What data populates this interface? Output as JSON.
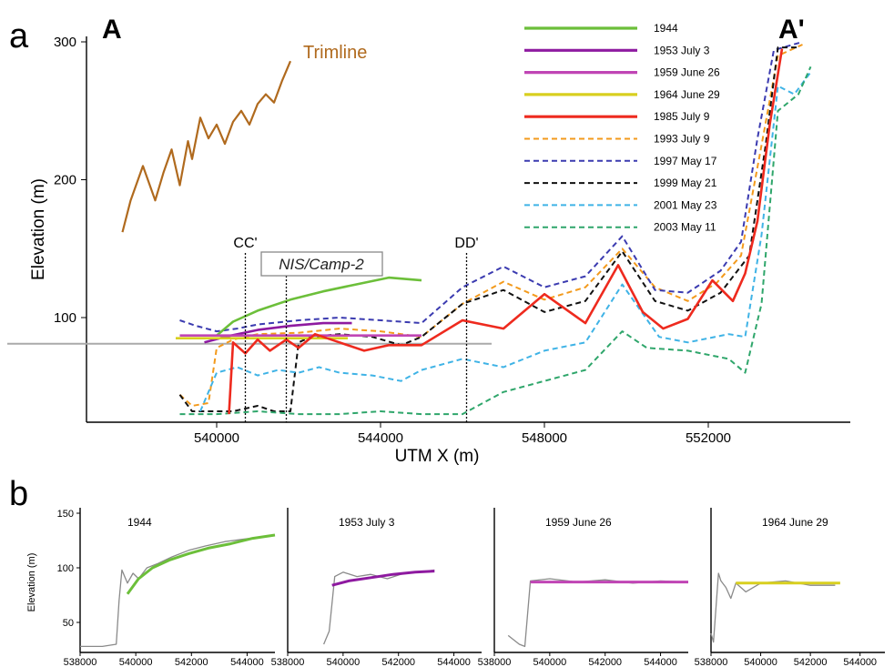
{
  "figure": {
    "panel_a_label": "a",
    "panel_b_label": "b",
    "endpoint_left": "A",
    "endpoint_right": "A'",
    "trimline_label": "Trimline",
    "nis_label": "NIS/Camp-2",
    "section_cc_label": "CC'",
    "section_dd_label": "DD'",
    "colors": {
      "1944": "#6cbf3a",
      "1953 July 3": "#8e1aa0",
      "1959 June 26": "#c045b5",
      "1964 June 29": "#d8cf1f",
      "1985 July 9": "#ee2a1e",
      "1993 July 9": "#f39a1c",
      "1997 May 17": "#3b3bb0",
      "1999 May 21": "#111111",
      "2001 May 23": "#3fb3e6",
      "2003 May 11": "#2fa66b",
      "trimline": "#b06a1e",
      "reference": "#aaaaaa",
      "raw": "#8a8a8a"
    }
  },
  "chart_data": [
    {
      "type": "line",
      "panel": "a",
      "xlabel": "UTM X (m)",
      "ylabel": "Elevation (m)",
      "xlim": [
        537000,
        555000
      ],
      "ylim": [
        25,
        300
      ],
      "xticks": [
        540000,
        544000,
        548000,
        552000
      ],
      "yticks": [
        100,
        200,
        300
      ],
      "legend_position": "top-right",
      "section_markers": [
        {
          "label": "CC'",
          "x": 540700
        },
        {
          "label": "DD'",
          "x": 546100
        }
      ],
      "nis_marker_x": 541700,
      "reference_line_y": 81,
      "trimline": {
        "x": [
          537700,
          537900,
          538200,
          538500,
          538700,
          538900,
          539100,
          539300,
          539400,
          539500,
          539600,
          539800,
          540000,
          540200,
          540400,
          540600,
          540800,
          541000,
          541200,
          541400,
          541600,
          541800
        ],
        "y": [
          162,
          185,
          210,
          185,
          205,
          222,
          196,
          228,
          215,
          230,
          245,
          230,
          240,
          226,
          242,
          250,
          240,
          255,
          262,
          256,
          272,
          286
        ]
      },
      "series": [
        {
          "name": "1944",
          "style": "solid",
          "x": [
            540000,
            540400,
            541000,
            541800,
            542600,
            543400,
            544200,
            545000
          ],
          "y": [
            87,
            97,
            105,
            113,
            119,
            124,
            129,
            127
          ]
        },
        {
          "name": "1953 July 3",
          "style": "solid",
          "x": [
            539700,
            540200,
            541000,
            541800,
            542600,
            543300
          ],
          "y": [
            82,
            86,
            91,
            94,
            96,
            96
          ]
        },
        {
          "name": "1959 June 26",
          "style": "solid",
          "x": [
            539100,
            541000,
            543000,
            545000
          ],
          "y": [
            87,
            87,
            87,
            87
          ]
        },
        {
          "name": "1964 June 29",
          "style": "solid",
          "x": [
            539000,
            541000,
            543200
          ],
          "y": [
            85,
            85,
            85
          ]
        },
        {
          "name": "1985 July 9",
          "style": "solid",
          "x": [
            540300,
            540400,
            540700,
            541000,
            541300,
            541700,
            542000,
            542400,
            543000,
            543600,
            544200,
            545000,
            546000,
            547000,
            548000,
            549000,
            549800,
            550400,
            550900,
            551500,
            552100,
            552600,
            552900,
            553200,
            553500,
            553800
          ],
          "y": [
            30,
            82,
            74,
            84,
            76,
            84,
            78,
            88,
            82,
            76,
            80,
            80,
            98,
            92,
            117,
            96,
            138,
            104,
            92,
            99,
            127,
            112,
            132,
            170,
            240,
            295
          ]
        },
        {
          "name": "1993 July 9",
          "style": "dashed",
          "x": [
            539100,
            539400,
            539800,
            540000,
            540400,
            541000,
            542000,
            543000,
            544000,
            545000,
            546000,
            547000,
            548000,
            549000,
            549900,
            550700,
            551500,
            552200,
            552800,
            553300,
            553700,
            554300
          ],
          "y": [
            44,
            36,
            38,
            78,
            84,
            88,
            89,
            92,
            90,
            86,
            110,
            126,
            113,
            122,
            150,
            122,
            112,
            125,
            145,
            225,
            290,
            298
          ]
        },
        {
          "name": "1997 May 17",
          "style": "dashed",
          "x": [
            539100,
            539500,
            540000,
            540500,
            541000,
            542000,
            543000,
            544000,
            545000,
            546000,
            547000,
            548000,
            549000,
            549900,
            550700,
            551500,
            552300,
            552800,
            553200,
            553600,
            554300
          ],
          "y": [
            98,
            94,
            90,
            92,
            95,
            98,
            100,
            98,
            96,
            122,
            137,
            122,
            130,
            159,
            120,
            118,
            134,
            155,
            230,
            294,
            300
          ]
        },
        {
          "name": "1999 May 21",
          "style": "dashed",
          "x": [
            539100,
            539400,
            540000,
            540400,
            541000,
            541400,
            541800,
            542000,
            542300,
            543000,
            543800,
            544500,
            545000,
            546000,
            547000,
            548000,
            549000,
            549900,
            550700,
            551500,
            552300,
            553000,
            553400,
            553700,
            554200
          ],
          "y": [
            44,
            32,
            32,
            32,
            36,
            32,
            32,
            82,
            86,
            88,
            86,
            80,
            86,
            110,
            120,
            104,
            112,
            148,
            112,
            105,
            118,
            145,
            225,
            296,
            296
          ]
        },
        {
          "name": "2001 May 23",
          "style": "dashed",
          "x": [
            539600,
            540000,
            540500,
            541000,
            541500,
            542000,
            542500,
            543000,
            543800,
            544500,
            545000,
            546000,
            547000,
            548000,
            549000,
            549900,
            550800,
            551500,
            552500,
            552900,
            553300,
            553700,
            554100,
            554500
          ],
          "y": [
            32,
            60,
            64,
            58,
            62,
            60,
            64,
            60,
            58,
            54,
            62,
            70,
            64,
            76,
            82,
            124,
            86,
            82,
            88,
            86,
            160,
            268,
            262,
            278
          ]
        },
        {
          "name": "2003 May 11",
          "style": "dashed",
          "x": [
            539100,
            540000,
            541000,
            542000,
            543000,
            544000,
            545000,
            546000,
            546500,
            547000,
            548000,
            549000,
            549900,
            550500,
            551500,
            552500,
            552900,
            553300,
            553700,
            554200,
            554500
          ],
          "y": [
            30,
            30,
            32,
            30,
            30,
            32,
            30,
            30,
            38,
            46,
            54,
            62,
            90,
            78,
            76,
            70,
            60,
            110,
            250,
            262,
            282
          ]
        }
      ]
    },
    {
      "type": "line",
      "panel": "b",
      "title": "1944",
      "ylabel": "Elevation (m)",
      "xlim": [
        538000,
        545000
      ],
      "ylim": [
        25,
        150
      ],
      "xticks": [
        538000,
        540000,
        542000,
        544000
      ],
      "yticks": [
        50,
        100,
        150
      ],
      "raw_profile": {
        "x": [
          538000,
          538800,
          539300,
          539400,
          539500,
          539700,
          539900,
          540100,
          540400,
          540800,
          541300,
          541900,
          542500,
          543200,
          543800,
          544400,
          545000
        ],
        "y": [
          28,
          28,
          30,
          70,
          98,
          86,
          95,
          90,
          100,
          104,
          110,
          116,
          120,
          124,
          126,
          128,
          130
        ]
      },
      "fitted": {
        "x": [
          539700,
          540100,
          540600,
          541200,
          541900,
          542600,
          543400,
          544200,
          545000
        ],
        "y": [
          76,
          90,
          100,
          107,
          113,
          118,
          122,
          127,
          130
        ]
      }
    },
    {
      "type": "line",
      "panel": "b",
      "title": "1953 July 3",
      "xlim": [
        538000,
        545000
      ],
      "ylim": [
        25,
        150
      ],
      "xticks": [
        538000,
        540000,
        542000,
        544000
      ],
      "raw_profile": {
        "x": [
          539300,
          539500,
          539700,
          540000,
          540500,
          541000,
          541600,
          542200,
          542800,
          543300
        ],
        "y": [
          30,
          42,
          92,
          96,
          92,
          94,
          90,
          95,
          96,
          98
        ]
      },
      "fitted": {
        "x": [
          539600,
          540200,
          541000,
          541800,
          542600,
          543300
        ],
        "y": [
          84,
          88,
          91,
          94,
          96,
          97
        ]
      }
    },
    {
      "type": "line",
      "panel": "b",
      "title": "1959 June 26",
      "xlim": [
        538000,
        545000
      ],
      "ylim": [
        25,
        150
      ],
      "xticks": [
        538000,
        540000,
        542000,
        544000
      ],
      "raw_profile": {
        "x": [
          538500,
          538900,
          539100,
          539300,
          540000,
          541000,
          542000,
          543000,
          544000,
          545000
        ],
        "y": [
          38,
          30,
          28,
          88,
          90,
          87,
          89,
          86,
          88,
          87
        ]
      },
      "fitted": {
        "x": [
          539300,
          541000,
          543000,
          545000
        ],
        "y": [
          87,
          87,
          87,
          87
        ]
      }
    },
    {
      "type": "line",
      "panel": "b",
      "title": "1964 June 29",
      "xlim": [
        538000,
        545000
      ],
      "ylim": [
        25,
        150
      ],
      "xticks": [
        538000,
        540000,
        542000,
        544000
      ],
      "raw_profile": {
        "x": [
          538000,
          538100,
          538300,
          538400,
          538600,
          538800,
          539000,
          539400,
          540000,
          541000,
          542000,
          543000
        ],
        "y": [
          40,
          32,
          95,
          88,
          82,
          72,
          86,
          78,
          86,
          88,
          84,
          84
        ]
      },
      "fitted": {
        "x": [
          539000,
          541000,
          543200
        ],
        "y": [
          86,
          86,
          86
        ]
      }
    }
  ]
}
